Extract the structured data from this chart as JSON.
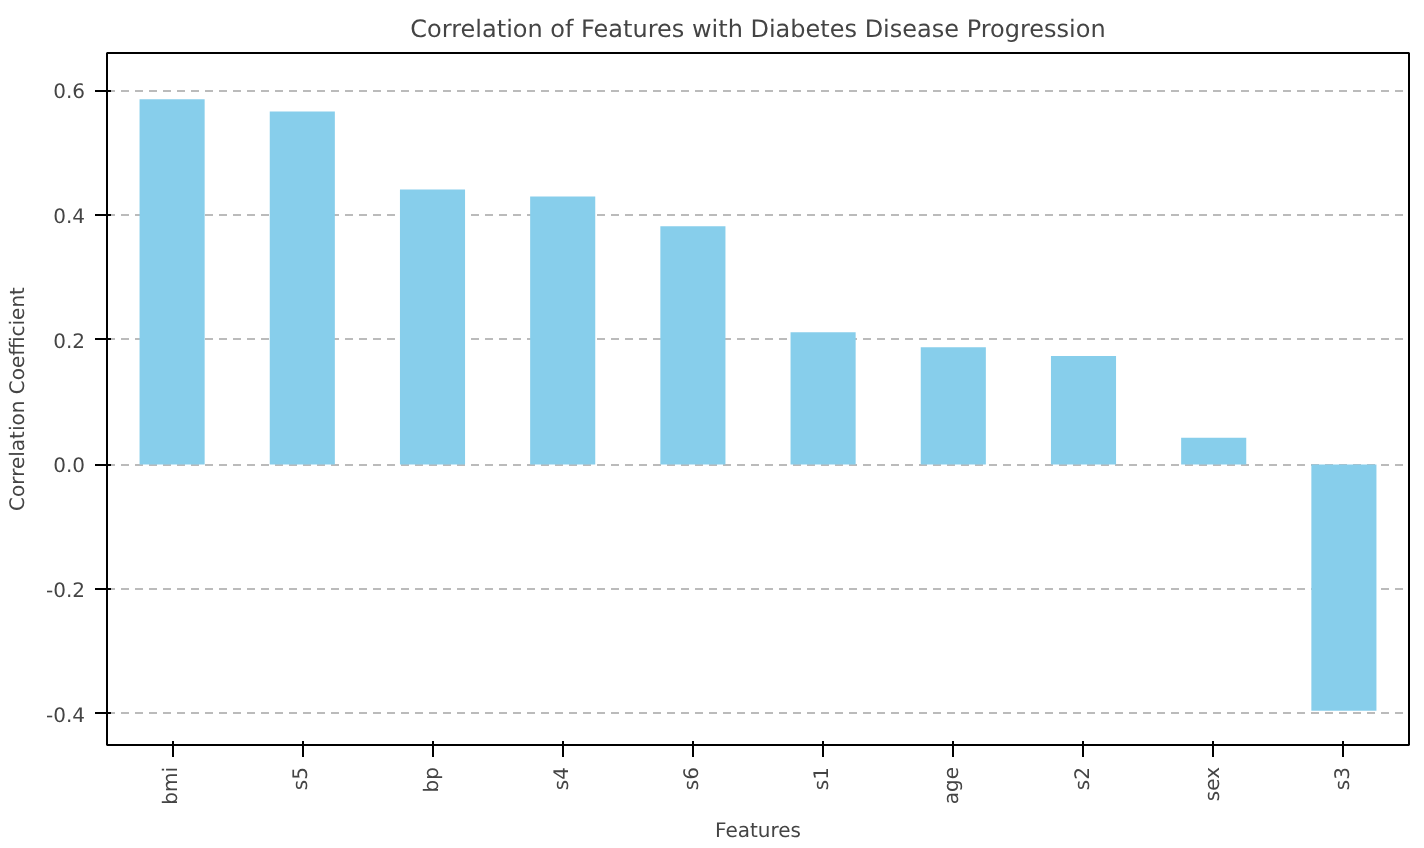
{
  "chart_data": {
    "type": "bar",
    "title": "Correlation of Features with Diabetes Disease Progression",
    "xlabel": "Features",
    "ylabel": "Correlation Coefficient",
    "categories": [
      "bmi",
      "s5",
      "bp",
      "s4",
      "s6",
      "s1",
      "age",
      "s2",
      "sex",
      "s3"
    ],
    "values": [
      0.586,
      0.566,
      0.441,
      0.43,
      0.382,
      0.212,
      0.188,
      0.174,
      0.043,
      -0.395
    ],
    "color": "#87ceeb",
    "ylim": [
      -0.45,
      0.66
    ],
    "yticks": [
      {
        "value": -0.4,
        "label": "-0.4"
      },
      {
        "value": -0.2,
        "label": "-0.2"
      },
      {
        "value": 0,
        "label": "0.0"
      },
      {
        "value": 0.2,
        "label": "0.2"
      },
      {
        "value": 0.4,
        "label": "0.4"
      },
      {
        "value": 0.6,
        "label": "0.6"
      }
    ],
    "grid": "y"
  }
}
